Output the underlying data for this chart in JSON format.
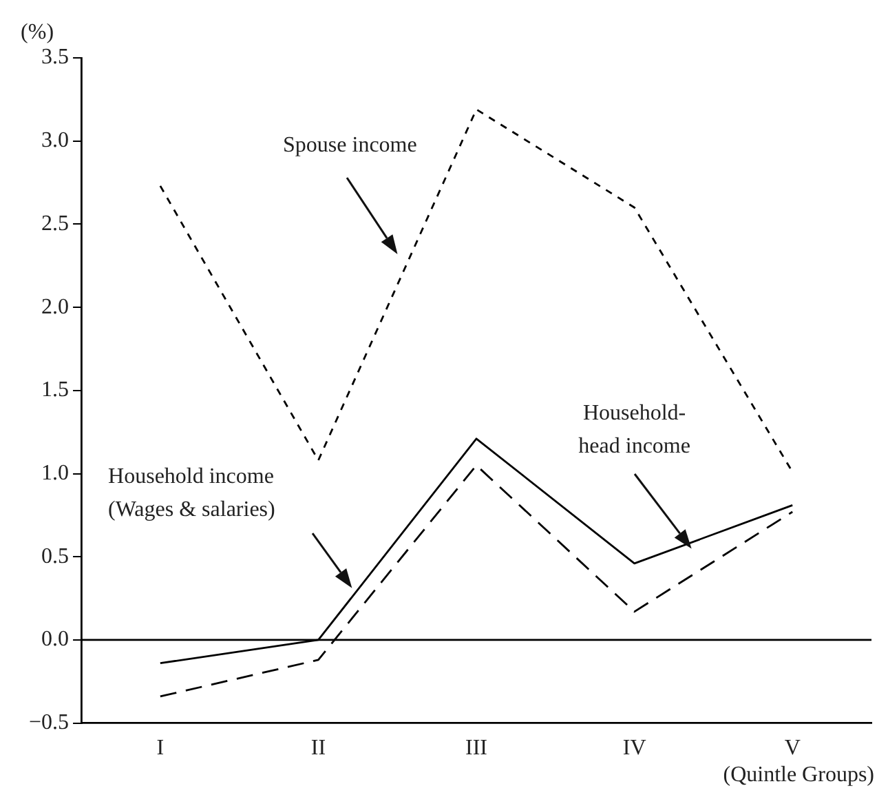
{
  "chart_data": {
    "type": "line",
    "ylabel": "(%)",
    "xlabel": "(Quintle Groups)",
    "categories": [
      "I",
      "II",
      "III",
      "IV",
      "V"
    ],
    "series": [
      {
        "color": "#000000",
        "line_style": "dotted",
        "values": [
          2.73,
          1.08,
          3.19,
          2.6,
          1.01
        ]
      },
      {
        "color": "#000000",
        "line_style": "solid",
        "values": [
          -0.14,
          0.0,
          1.21,
          0.46,
          0.81
        ]
      },
      {
        "color": "#000000",
        "line_style": "dashed",
        "values": [
          -0.34,
          -0.12,
          1.05,
          0.17,
          0.77
        ]
      }
    ],
    "ylim": [
      -0.5,
      3.5
    ],
    "yticks": [
      {
        "value": -0.5,
        "label": "−0.5"
      },
      {
        "value": 0,
        "label": "0.0"
      },
      {
        "value": 0.5,
        "label": "0.5"
      },
      {
        "value": 1,
        "label": "1.0"
      },
      {
        "value": 1.5,
        "label": "1.5"
      },
      {
        "value": 2,
        "label": "2.0"
      },
      {
        "value": 2.5,
        "label": "2.5"
      },
      {
        "value": 3,
        "label": "3.0"
      },
      {
        "value": 3.5,
        "label": "3.5"
      }
    ],
    "ref_lines": [
      {
        "axis": "y",
        "value": 0,
        "color": "#000000"
      }
    ],
    "annotations": [
      "Spouse income",
      "Household income\n(Wages & salaries)",
      "Household-\nhead income"
    ],
    "grid": false,
    "legend": false,
    "marker": "none"
  }
}
